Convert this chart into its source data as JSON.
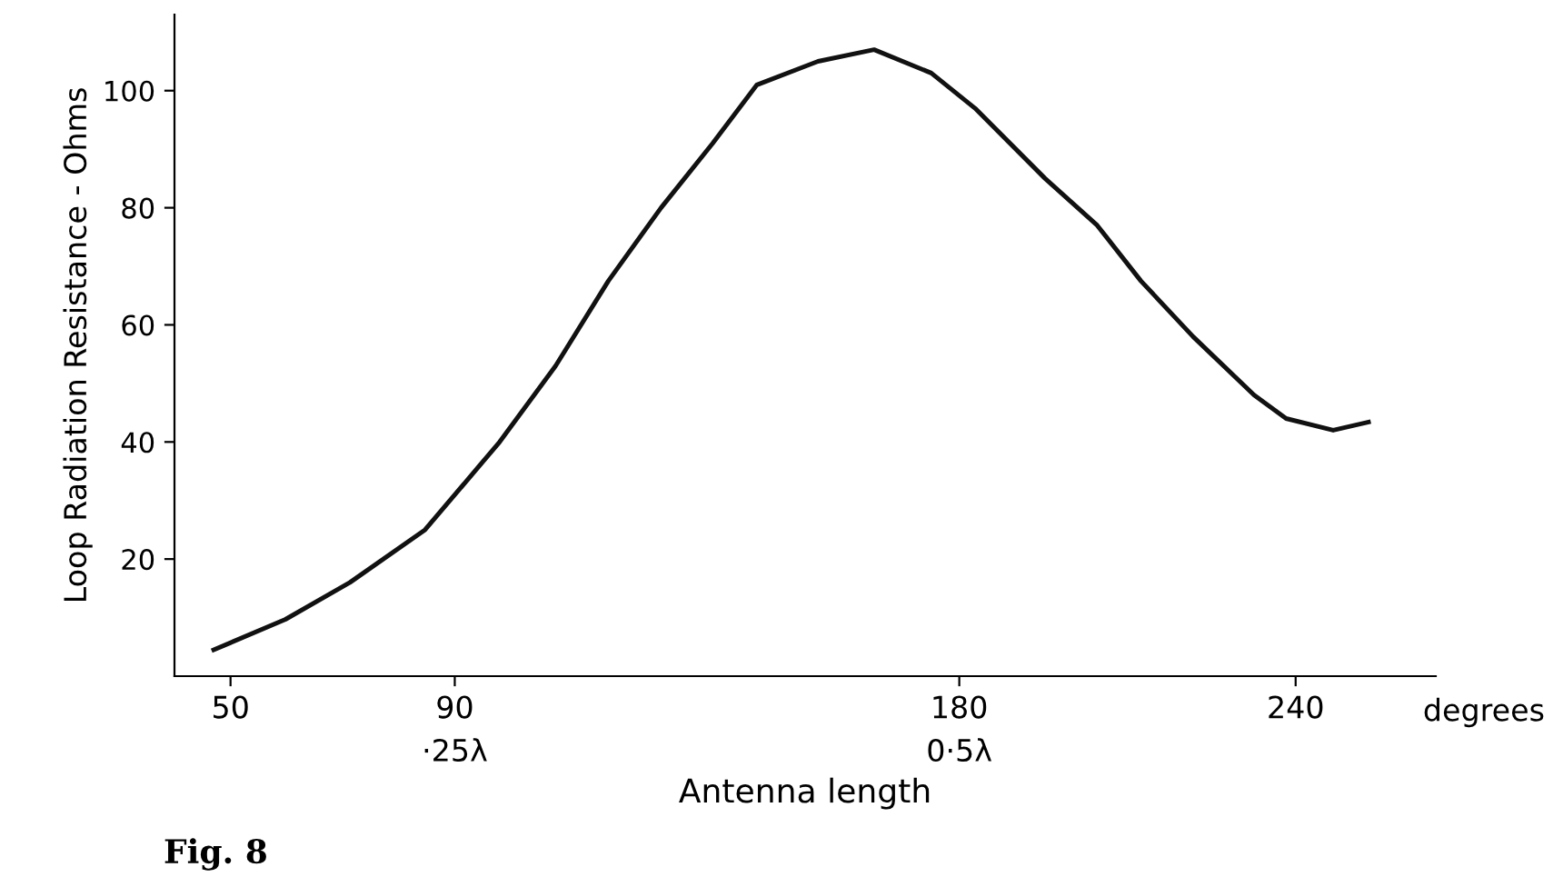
{
  "chart_data": {
    "type": "line",
    "ylabel": "Loop Radiation Resistance - Ohms",
    "xlabel": "Antenna length",
    "x": [
      47,
      59.8,
      71.3,
      84.7,
      98,
      108,
      117.4,
      126.8,
      136,
      143.9,
      154.8,
      164.8,
      175,
      182.8,
      195.3,
      204.6,
      212.4,
      221.7,
      232.6,
      238.3,
      246.7,
      253
    ],
    "series": [
      {
        "color": "#111111",
        "values": [
          4.5,
          9.7,
          16,
          25,
          40,
          53,
          67.5,
          80,
          91,
          101,
          105,
          107,
          103,
          97,
          85,
          77,
          67.5,
          58,
          48,
          44,
          42,
          43.4
        ]
      }
    ],
    "xlim": [
      40,
      265
    ],
    "ylim": [
      0,
      113
    ],
    "xticks": [
      50,
      {
        "value": 90,
        "label": "90\n·25λ"
      },
      {
        "value": 180,
        "label": "180\n0·5λ"
      },
      240
    ],
    "yticks": [
      20,
      40,
      60,
      80,
      100
    ],
    "grid": false,
    "legend": false,
    "marker": "none",
    "line_style": "solid",
    "annotations": [
      "degrees",
      "Fig. 8"
    ]
  }
}
